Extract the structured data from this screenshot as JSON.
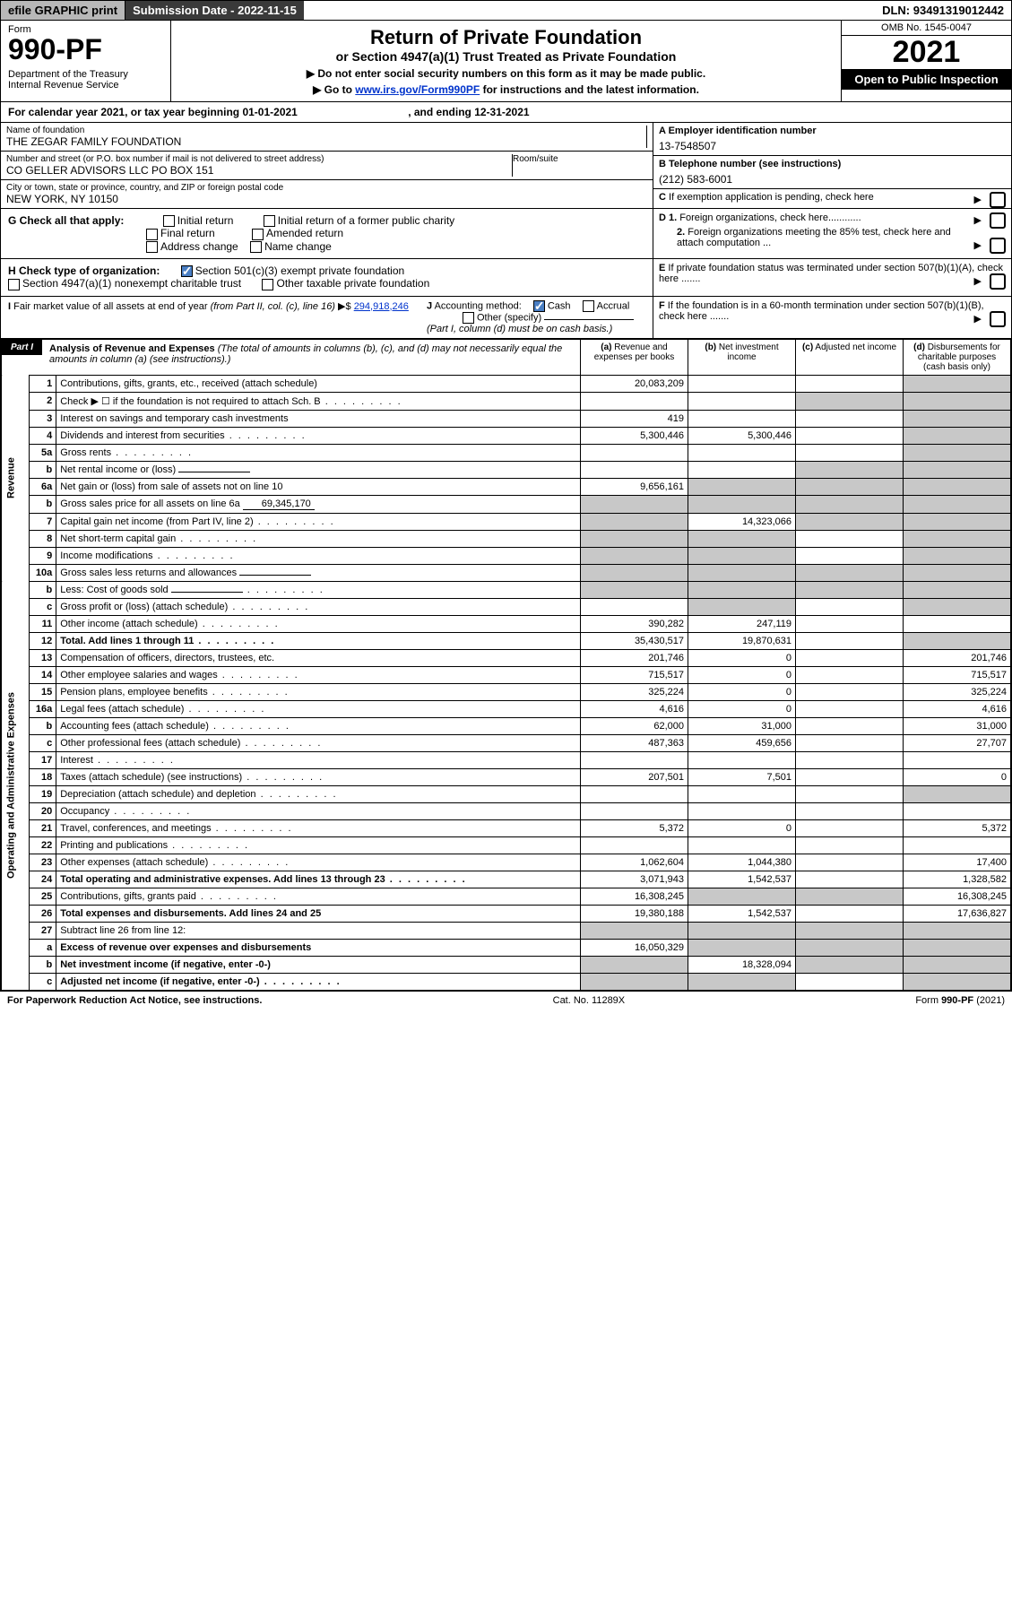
{
  "topbar": {
    "efile": "efile GRAPHIC print",
    "subdate_label": "Submission Date - ",
    "subdate": "2022-11-15",
    "dln_label": "DLN: ",
    "dln": "93491319012442"
  },
  "header": {
    "form_label": "Form",
    "form_no": "990-PF",
    "dept": "Department of the Treasury\nInternal Revenue Service",
    "title": "Return of Private Foundation",
    "sub": "or Section 4947(a)(1) Trust Treated as Private Foundation",
    "instr1": "▶ Do not enter social security numbers on this form as it may be made public.",
    "instr2_pre": "▶ Go to ",
    "instr2_link": "www.irs.gov/Form990PF",
    "instr2_post": " for instructions and the latest information.",
    "omb": "OMB No. 1545-0047",
    "year": "2021",
    "open": "Open to Public Inspection"
  },
  "calendar": {
    "pre": "For calendar year 2021, or tax year beginning ",
    "begin": "01-01-2021",
    "mid": " , and ending ",
    "end": "12-31-2021"
  },
  "info": {
    "name_label": "Name of foundation",
    "name": "THE ZEGAR FAMILY FOUNDATION",
    "addr_label": "Number and street (or P.O. box number if mail is not delivered to street address)",
    "addr": "CO GELLER ADVISORS LLC PO BOX 151",
    "room_label": "Room/suite",
    "city_label": "City or town, state or province, country, and ZIP or foreign postal code",
    "city": "NEW YORK, NY  10150",
    "a_label": "A Employer identification number",
    "a_val": "13-7548507",
    "b_label": "B Telephone number (see instructions)",
    "b_val": "(212) 583-6001",
    "c_label": "C If exemption application is pending, check here",
    "d1_label": "D 1. Foreign organizations, check here",
    "d2_label": "2. Foreign organizations meeting the 85% test, check here and attach computation ...",
    "e_label": "E  If private foundation status was terminated under section 507(b)(1)(A), check here .......",
    "f_label": "F  If the foundation is in a 60-month termination under section 507(b)(1)(B), check here .......",
    "g_label": "G Check all that apply:",
    "g_opts": [
      "Initial return",
      "Initial return of a former public charity",
      "Final return",
      "Amended return",
      "Address change",
      "Name change"
    ],
    "h_label": "H Check type of organization:",
    "h_opts": [
      "Section 501(c)(3) exempt private foundation",
      "Section 4947(a)(1) nonexempt charitable trust",
      "Other taxable private foundation"
    ],
    "i_label": "I Fair market value of all assets at end of year (from Part II, col. (c), line 16)",
    "i_val": "294,918,246",
    "j_label": "J Accounting method:",
    "j_opts": [
      "Cash",
      "Accrual",
      "Other (specify)"
    ],
    "j_note": "(Part I, column (d) must be on cash basis.)"
  },
  "part1": {
    "label": "Part I",
    "title": "Analysis of Revenue and Expenses",
    "note": " (The total of amounts in columns (b), (c), and (d) may not necessarily equal the amounts in column (a) (see instructions).)",
    "cols": {
      "a": "(a) Revenue and expenses per books",
      "b": "(b) Net investment income",
      "c": "(c) Adjusted net income",
      "d": "(d) Disbursements for charitable purposes (cash basis only)"
    }
  },
  "sections": {
    "revenue": "Revenue",
    "expenses": "Operating and Administrative Expenses"
  },
  "rows": [
    {
      "n": "1",
      "desc": "Contributions, gifts, grants, etc., received (attach schedule)",
      "a": "20,083,209",
      "d_grey": true
    },
    {
      "n": "2",
      "desc": "Check ▶ ☐ if the foundation is not required to attach Sch. B",
      "dots": true,
      "d_grey": true,
      "all_grey_cd": true
    },
    {
      "n": "3",
      "desc": "Interest on savings and temporary cash investments",
      "a": "419"
    },
    {
      "n": "4",
      "desc": "Dividends and interest from securities",
      "dots": true,
      "a": "5,300,446",
      "b": "5,300,446"
    },
    {
      "n": "5a",
      "desc": "Gross rents",
      "dots": true
    },
    {
      "n": "b",
      "desc": "Net rental income or (loss)",
      "inline": true,
      "cd_grey": true
    },
    {
      "n": "6a",
      "desc": "Net gain or (loss) from sale of assets not on line 10",
      "a": "9,656,161",
      "bcd_grey": true
    },
    {
      "n": "b",
      "desc": "Gross sales price for all assets on line 6a",
      "inline": true,
      "inline_val": "69,345,170",
      "all_grey": true
    },
    {
      "n": "7",
      "desc": "Capital gain net income (from Part IV, line 2)",
      "dots": true,
      "b": "14,323,066",
      "a_grey": true,
      "cd_grey": true
    },
    {
      "n": "8",
      "desc": "Net short-term capital gain",
      "dots": true,
      "ab_grey": true,
      "d_grey": true
    },
    {
      "n": "9",
      "desc": "Income modifications",
      "dots": true,
      "ab_grey": true,
      "d_grey": true
    },
    {
      "n": "10a",
      "desc": "Gross sales less returns and allowances",
      "inline": true,
      "all_grey": true
    },
    {
      "n": "b",
      "desc": "Less: Cost of goods sold",
      "dots": true,
      "inline": true,
      "all_grey": true
    },
    {
      "n": "c",
      "desc": "Gross profit or (loss) (attach schedule)",
      "dots": true,
      "b_grey": true,
      "d_grey": true
    },
    {
      "n": "11",
      "desc": "Other income (attach schedule)",
      "dots": true,
      "a": "390,282",
      "b": "247,119"
    },
    {
      "n": "12",
      "desc": "Total. Add lines 1 through 11",
      "dots": true,
      "bold": true,
      "a": "35,430,517",
      "b": "19,870,631",
      "d_grey": true
    },
    {
      "n": "13",
      "desc": "Compensation of officers, directors, trustees, etc.",
      "a": "201,746",
      "b": "0",
      "d": "201,746"
    },
    {
      "n": "14",
      "desc": "Other employee salaries and wages",
      "dots": true,
      "a": "715,517",
      "b": "0",
      "d": "715,517"
    },
    {
      "n": "15",
      "desc": "Pension plans, employee benefits",
      "dots": true,
      "a": "325,224",
      "b": "0",
      "d": "325,224"
    },
    {
      "n": "16a",
      "desc": "Legal fees (attach schedule)",
      "dots": true,
      "a": "4,616",
      "b": "0",
      "d": "4,616"
    },
    {
      "n": "b",
      "desc": "Accounting fees (attach schedule)",
      "dots": true,
      "a": "62,000",
      "b": "31,000",
      "d": "31,000"
    },
    {
      "n": "c",
      "desc": "Other professional fees (attach schedule)",
      "dots": true,
      "a": "487,363",
      "b": "459,656",
      "d": "27,707"
    },
    {
      "n": "17",
      "desc": "Interest",
      "dots": true
    },
    {
      "n": "18",
      "desc": "Taxes (attach schedule) (see instructions)",
      "dots": true,
      "a": "207,501",
      "b": "7,501",
      "d": "0"
    },
    {
      "n": "19",
      "desc": "Depreciation (attach schedule) and depletion",
      "dots": true,
      "d_grey": true
    },
    {
      "n": "20",
      "desc": "Occupancy",
      "dots": true
    },
    {
      "n": "21",
      "desc": "Travel, conferences, and meetings",
      "dots": true,
      "a": "5,372",
      "b": "0",
      "d": "5,372"
    },
    {
      "n": "22",
      "desc": "Printing and publications",
      "dots": true
    },
    {
      "n": "23",
      "desc": "Other expenses (attach schedule)",
      "dots": true,
      "a": "1,062,604",
      "b": "1,044,380",
      "d": "17,400"
    },
    {
      "n": "24",
      "desc": "Total operating and administrative expenses. Add lines 13 through 23",
      "dots": true,
      "bold": true,
      "a": "3,071,943",
      "b": "1,542,537",
      "d": "1,328,582"
    },
    {
      "n": "25",
      "desc": "Contributions, gifts, grants paid",
      "dots": true,
      "a": "16,308,245",
      "b_grey": true,
      "c_grey": true,
      "d": "16,308,245"
    },
    {
      "n": "26",
      "desc": "Total expenses and disbursements. Add lines 24 and 25",
      "bold": true,
      "a": "19,380,188",
      "b": "1,542,537",
      "d": "17,636,827"
    },
    {
      "n": "27",
      "desc": "Subtract line 26 from line 12:",
      "all_grey": true
    },
    {
      "n": "a",
      "desc": "Excess of revenue over expenses and disbursements",
      "bold": true,
      "a": "16,050,329",
      "bcd_grey": true
    },
    {
      "n": "b",
      "desc": "Net investment income (if negative, enter -0-)",
      "bold": true,
      "b": "18,328,094",
      "a_grey": true,
      "cd_grey": true
    },
    {
      "n": "c",
      "desc": "Adjusted net income (if negative, enter -0-)",
      "bold": true,
      "dots": true,
      "ab_grey": true,
      "d_grey": true
    }
  ],
  "footer": {
    "left": "For Paperwork Reduction Act Notice, see instructions.",
    "mid": "Cat. No. 11289X",
    "right": "Form 990-PF (2021)"
  }
}
